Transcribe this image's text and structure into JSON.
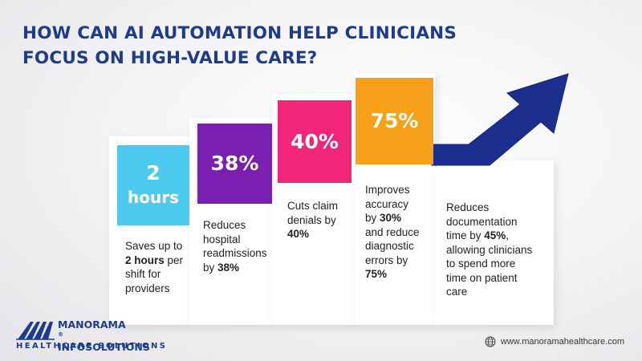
{
  "title": {
    "line1": "HOW CAN AI AUTOMATION HELP CLINICIANS",
    "line2": "FOCUS ON HIGH-VALUE CARE?"
  },
  "steps": [
    {
      "value": "2",
      "unit": "hours",
      "color": "#4ecaf0",
      "desc": [
        "Saves up to",
        "2 hours",
        " per",
        "shift for",
        "providers"
      ]
    },
    {
      "value": "38%",
      "color": "#7a1fb0",
      "desc": [
        "Reduces",
        "hospital",
        "readmissions",
        "by ",
        "38%"
      ]
    },
    {
      "value": "40%",
      "color": "#f0267a",
      "desc": [
        "Cuts claim",
        "denials by",
        "40%"
      ]
    },
    {
      "value": "75%",
      "color": "#f7a11a",
      "desc": [
        "Improves",
        "accuracy",
        "by ",
        "30%",
        "and reduce",
        "diagnostic",
        "errors by",
        "75%"
      ]
    },
    {
      "desc": [
        "Reduces",
        "documentation",
        "time by ",
        "45%",
        ",",
        "allowing clinicians",
        "to spend more",
        "time on patient",
        "care"
      ]
    }
  ],
  "brand": {
    "name_line1": "MANORAMA",
    "registered": "®",
    "name_line2": "INFOSOLUTIONS",
    "tagline": "HEALTHCARE SOLUTIONS",
    "website": "www.manoramahealthcare.com"
  },
  "colors": {
    "title": "#1f3c8c",
    "arrow": "#1c2f8f"
  }
}
